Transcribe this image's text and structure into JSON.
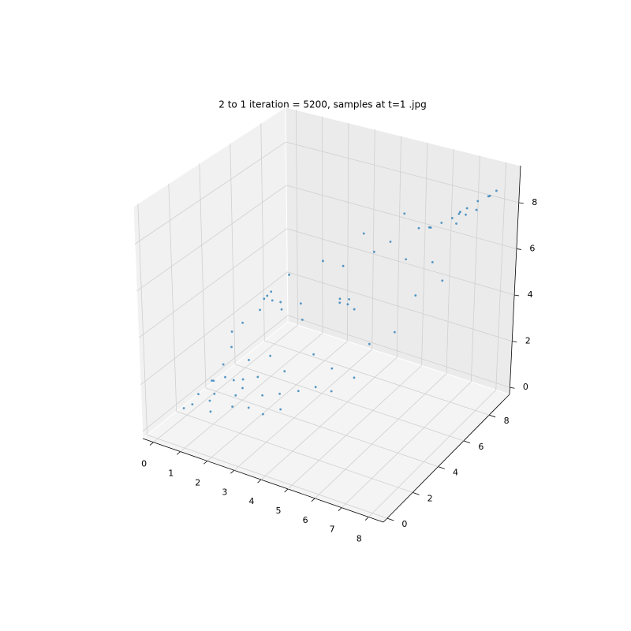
{
  "chart_data": {
    "type": "scatter3d",
    "title": "2 to 1 iteration = 5200, samples at t=1 .jpg",
    "color": "#1f77b4",
    "grid": true,
    "xlim": [
      -0.4,
      8.55
    ],
    "ylim": [
      -0.3,
      9.6
    ],
    "zlim": [
      -0.3,
      9.6
    ],
    "xticks": [
      0,
      1,
      2,
      3,
      4,
      5,
      6,
      7,
      8
    ],
    "yticks": [
      0,
      2,
      4,
      6,
      8
    ],
    "zticks": [
      0,
      2,
      4,
      6,
      8
    ],
    "x": [
      0.2,
      0.5,
      0.0,
      0.8,
      1.2,
      0.3,
      1.5,
      2.0,
      2.5,
      0.1,
      0.6,
      1.0,
      0.4,
      0.2,
      1.8,
      3.0,
      3.5,
      2.2,
      0.9,
      1.4,
      0.7,
      1.1,
      0.0,
      2.8,
      1.6,
      0.5,
      4.0,
      0.3,
      1.3,
      2.4,
      1.8,
      1.6,
      2.0,
      1.7,
      2.2,
      1.5,
      2.6,
      4.0,
      3.8,
      4.2,
      4.1,
      3.6,
      7.2,
      7.0,
      7.5,
      7.8,
      8.0,
      6.8,
      6.5,
      7.3,
      6.9,
      7.6,
      6.2,
      7.9,
      6.0,
      5.8,
      7.1,
      5.0,
      4.5,
      3.5,
      3.0,
      5.5,
      2.5,
      4.8,
      5.5,
      6.0,
      3.2,
      4.2,
      6.5,
      2.0,
      5.2,
      3.8,
      6.8,
      1.0,
      4.5
    ],
    "y": [
      3.5,
      3.0,
      2.8,
      3.8,
      3.2,
      4.0,
      4.2,
      3.6,
      3.9,
      2.2,
      2.5,
      4.5,
      4.4,
      4.8,
      3.0,
      4.3,
      4.6,
      4.8,
      2.0,
      2.6,
      3.4,
      3.9,
      1.8,
      3.4,
      4.9,
      5.0,
      4.8,
      3.2,
      3.5,
      2.9,
      4.7,
      4.5,
      4.9,
      4.8,
      4.6,
      4.9,
      5.2,
      5.9,
      5.7,
      6.0,
      5.8,
      6.1,
      8.3,
      8.1,
      8.5,
      8.7,
      8.9,
      8.0,
      7.8,
      8.0,
      8.4,
      8.2,
      7.6,
      8.6,
      7.9,
      7.5,
      7.7,
      7.0,
      6.8,
      6.5,
      6.0,
      7.2,
      5.5,
      6.0,
      6.5,
      7.0,
      5.0,
      6.6,
      7.2,
      5.5,
      7.6,
      5.2,
      7.4,
      5.3,
      5.5
    ],
    "z": [
      0.5,
      0.3,
      0.2,
      0.6,
      0.4,
      1.0,
      0.8,
      0.5,
      0.6,
      0.1,
      0.3,
      1.2,
      1.6,
      2.0,
      0.2,
      0.7,
      0.9,
      1.0,
      0.2,
      0.3,
      0.9,
      0.7,
      0.1,
      0.3,
      1.4,
      2.4,
      0.8,
      0.7,
      0.6,
      0.2,
      4.0,
      4.1,
      3.9,
      4.3,
      3.8,
      4.0,
      3.9,
      4.0,
      4.1,
      3.8,
      4.3,
      4.0,
      8.0,
      7.8,
      8.3,
      8.5,
      8.7,
      7.6,
      7.4,
      7.9,
      7.7,
      8.1,
      7.2,
      8.6,
      7.0,
      7.1,
      7.6,
      6.5,
      6.0,
      5.2,
      5.5,
      5.8,
      3.0,
      2.5,
      3.0,
      4.5,
      2.0,
      6.8,
      6.0,
      4.8,
      7.5,
      1.5,
      5.2,
      3.0,
      1.2
    ]
  }
}
